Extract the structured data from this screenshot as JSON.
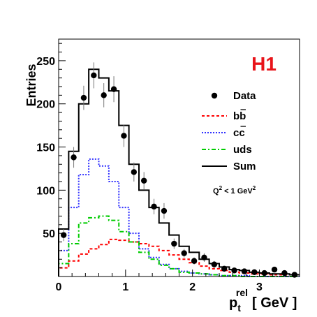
{
  "chart_data": {
    "type": "histogram",
    "ylabel": "Entries",
    "xlabel": {
      "main": "p",
      "sub": "t",
      "sup": "rel",
      "unit": "[ GeV ]"
    },
    "logo": {
      "text": "H1",
      "color": "#e8141a"
    },
    "annotation": {
      "q": "Q",
      "exp": "2",
      "rest": " < 1 GeV",
      "unit_exp": "2"
    },
    "xlim": [
      0,
      3.6
    ],
    "ylim": [
      0,
      275
    ],
    "xticks": [
      0,
      1,
      2,
      3
    ],
    "xtick_labels": [
      "0",
      "1",
      "2",
      "3"
    ],
    "yticks": [
      50,
      100,
      150,
      200,
      250
    ],
    "ytick_labels": [
      "50",
      "100",
      "150",
      "200",
      "250"
    ],
    "bin_width": 0.15,
    "bin_edges": [
      0,
      0.15,
      0.3,
      0.45,
      0.6,
      0.75,
      0.9,
      1.05,
      1.2,
      1.35,
      1.5,
      1.65,
      1.8,
      1.95,
      2.1,
      2.25,
      2.4,
      2.55,
      2.7,
      2.85,
      3.0,
      3.15,
      3.3,
      3.45,
      3.6
    ],
    "legend": {
      "placement": "right",
      "entries": [
        {
          "key": "data",
          "label": "Data"
        },
        {
          "key": "bb",
          "label": "bb",
          "bar": "b"
        },
        {
          "key": "cc",
          "label": "cc",
          "bar": "c"
        },
        {
          "key": "uds",
          "label": "uds"
        },
        {
          "key": "sum",
          "label": "Sum"
        }
      ]
    },
    "series": [
      {
        "key": "bb",
        "color": "#ff0000",
        "dash": "4,3",
        "values": [
          10,
          18,
          26,
          32,
          37,
          43,
          42,
          40,
          38,
          35,
          30,
          25,
          20,
          16,
          12,
          9,
          7,
          5,
          4,
          3,
          3,
          2,
          2,
          2
        ]
      },
      {
        "key": "cc",
        "color": "#3030ff",
        "dash": "2,2",
        "values": [
          30,
          80,
          118,
          136,
          128,
          110,
          80,
          50,
          32,
          22,
          14,
          9,
          6,
          4,
          3,
          2,
          1,
          1,
          1,
          0,
          0,
          0,
          0,
          0
        ]
      },
      {
        "key": "uds",
        "color": "#00cc00",
        "dash": "6,3,2,3",
        "values": [
          15,
          38,
          62,
          68,
          70,
          65,
          52,
          40,
          28,
          20,
          13,
          9,
          5,
          4,
          3,
          2,
          1,
          1,
          0,
          0,
          0,
          0,
          0,
          0
        ]
      },
      {
        "key": "sum",
        "color": "#000000",
        "dash": "",
        "values": [
          55,
          145,
          200,
          240,
          230,
          215,
          175,
          130,
          100,
          80,
          62,
          48,
          35,
          28,
          20,
          15,
          11,
          8,
          7,
          5,
          4,
          3,
          3,
          2
        ]
      }
    ],
    "data_points": {
      "key": "data",
      "x": [
        0.075,
        0.225,
        0.375,
        0.525,
        0.675,
        0.825,
        0.975,
        1.125,
        1.275,
        1.425,
        1.575,
        1.725,
        1.875,
        2.025,
        2.175,
        2.325,
        2.475,
        2.625,
        2.775,
        2.925,
        3.075,
        3.225,
        3.375,
        3.525
      ],
      "y": [
        48,
        138,
        207,
        233,
        210,
        217,
        163,
        121,
        111,
        81,
        76,
        38,
        27,
        18,
        22,
        14,
        9,
        7,
        6,
        5,
        4,
        8,
        4,
        2
      ],
      "err": [
        7,
        12,
        14,
        15,
        14,
        15,
        13,
        11,
        10,
        9,
        9,
        6,
        5,
        4,
        5,
        4,
        3,
        3,
        2,
        2,
        2,
        3,
        2,
        1.5
      ]
    }
  }
}
